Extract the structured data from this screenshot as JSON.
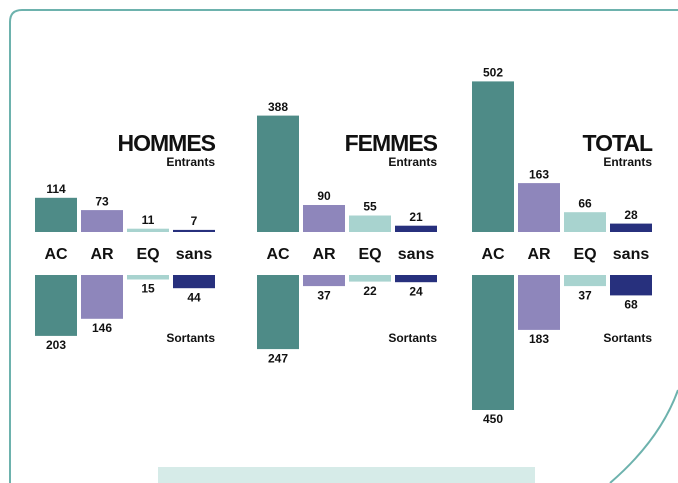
{
  "chart_data": [
    {
      "type": "bar",
      "title": "HOMMES",
      "categories": [
        "AC",
        "AR",
        "EQ",
        "sans"
      ],
      "colors": [
        "#4e8b87",
        "#8e86bb",
        "#a8d3cf",
        "#27307d"
      ],
      "series": [
        {
          "name": "Entrants",
          "values": [
            114,
            73,
            11,
            7
          ]
        },
        {
          "name": "Sortants",
          "values": [
            203,
            146,
            15,
            44
          ]
        }
      ]
    },
    {
      "type": "bar",
      "title": "FEMMES",
      "categories": [
        "AC",
        "AR",
        "EQ",
        "sans"
      ],
      "colors": [
        "#4e8b87",
        "#8e86bb",
        "#a8d3cf",
        "#27307d"
      ],
      "series": [
        {
          "name": "Entrants",
          "values": [
            388,
            90,
            55,
            21
          ]
        },
        {
          "name": "Sortants",
          "values": [
            247,
            37,
            22,
            24
          ]
        }
      ]
    },
    {
      "type": "bar",
      "title": "TOTAL",
      "categories": [
        "AC",
        "AR",
        "EQ",
        "sans"
      ],
      "colors": [
        "#4e8b87",
        "#8e86bb",
        "#a8d3cf",
        "#27307d"
      ],
      "series": [
        {
          "name": "Entrants",
          "values": [
            502,
            163,
            66,
            28
          ]
        },
        {
          "name": "Sortants",
          "values": [
            450,
            183,
            37,
            68
          ]
        }
      ]
    }
  ]
}
